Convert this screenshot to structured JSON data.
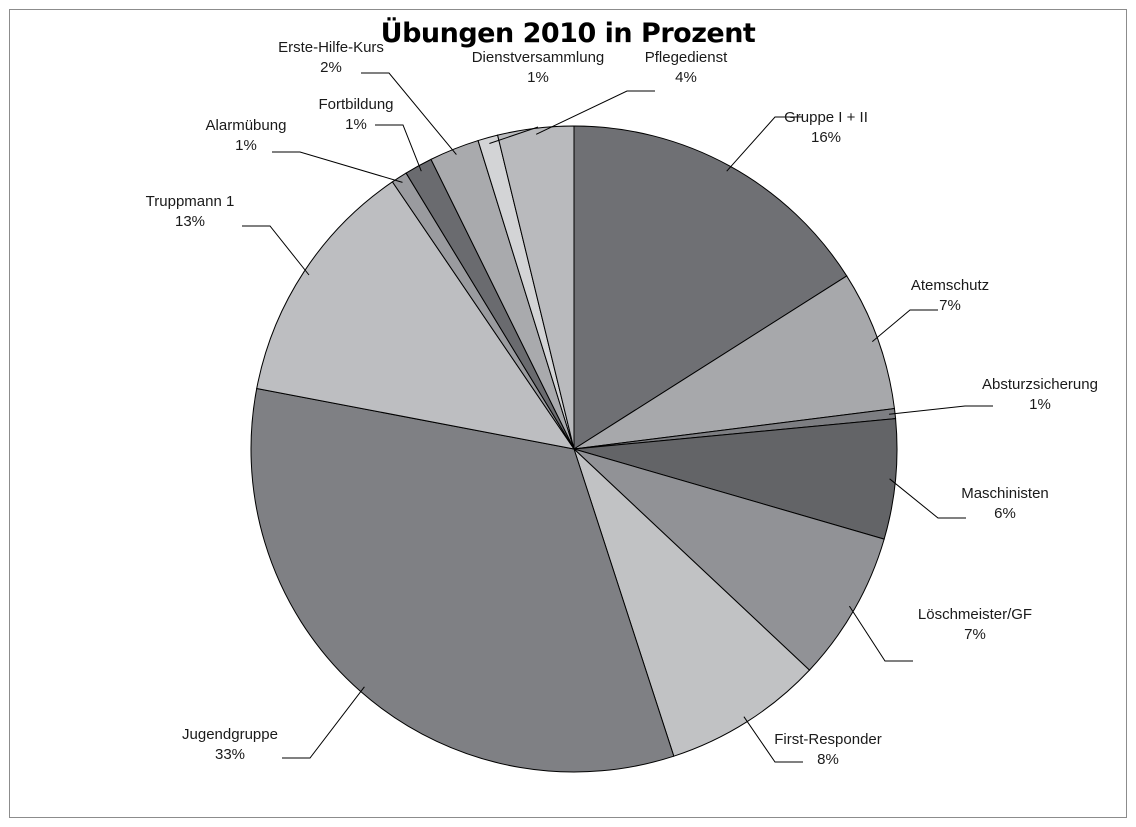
{
  "chart_data": {
    "type": "pie",
    "title": "Übungen 2010 in Prozent",
    "slices": [
      {
        "name": "Gruppe I + II",
        "value": 16,
        "label": "16%",
        "color": "#6f7074"
      },
      {
        "name": "Atemschutz",
        "value": 7,
        "label": "7%",
        "color": "#a7a8ab"
      },
      {
        "name": "Absturzsicherung",
        "value": 0.5,
        "label": "1%",
        "color": "#7d7e82"
      },
      {
        "name": "Maschinisten",
        "value": 6,
        "label": "6%",
        "color": "#636467"
      },
      {
        "name": "Löschmeister/GF",
        "value": 7.5,
        "label": "7%",
        "color": "#919296"
      },
      {
        "name": "First-Responder",
        "value": 8,
        "label": "8%",
        "color": "#c1c2c4"
      },
      {
        "name": "Jugendgruppe",
        "value": 33,
        "label": "33%",
        "color": "#7f8084"
      },
      {
        "name": "Truppmann 1",
        "value": 12.5,
        "label": "13%",
        "color": "#bdbec1"
      },
      {
        "name": "Alarmübung",
        "value": 0.8,
        "label": "1%",
        "color": "#9a9b9f"
      },
      {
        "name": "Fortbildung",
        "value": 1.4,
        "label": "1%",
        "color": "#6a6b6f"
      },
      {
        "name": "Erste-Hilfe-Kurs",
        "value": 2.5,
        "label": "2%",
        "color": "#a9aaad"
      },
      {
        "name": "Dienstversammlung",
        "value": 1,
        "label": "1%",
        "color": "#d3d4d6"
      },
      {
        "name": "Pflegedienst",
        "value": 3.8,
        "label": "4%",
        "color": "#b9babd"
      }
    ]
  }
}
